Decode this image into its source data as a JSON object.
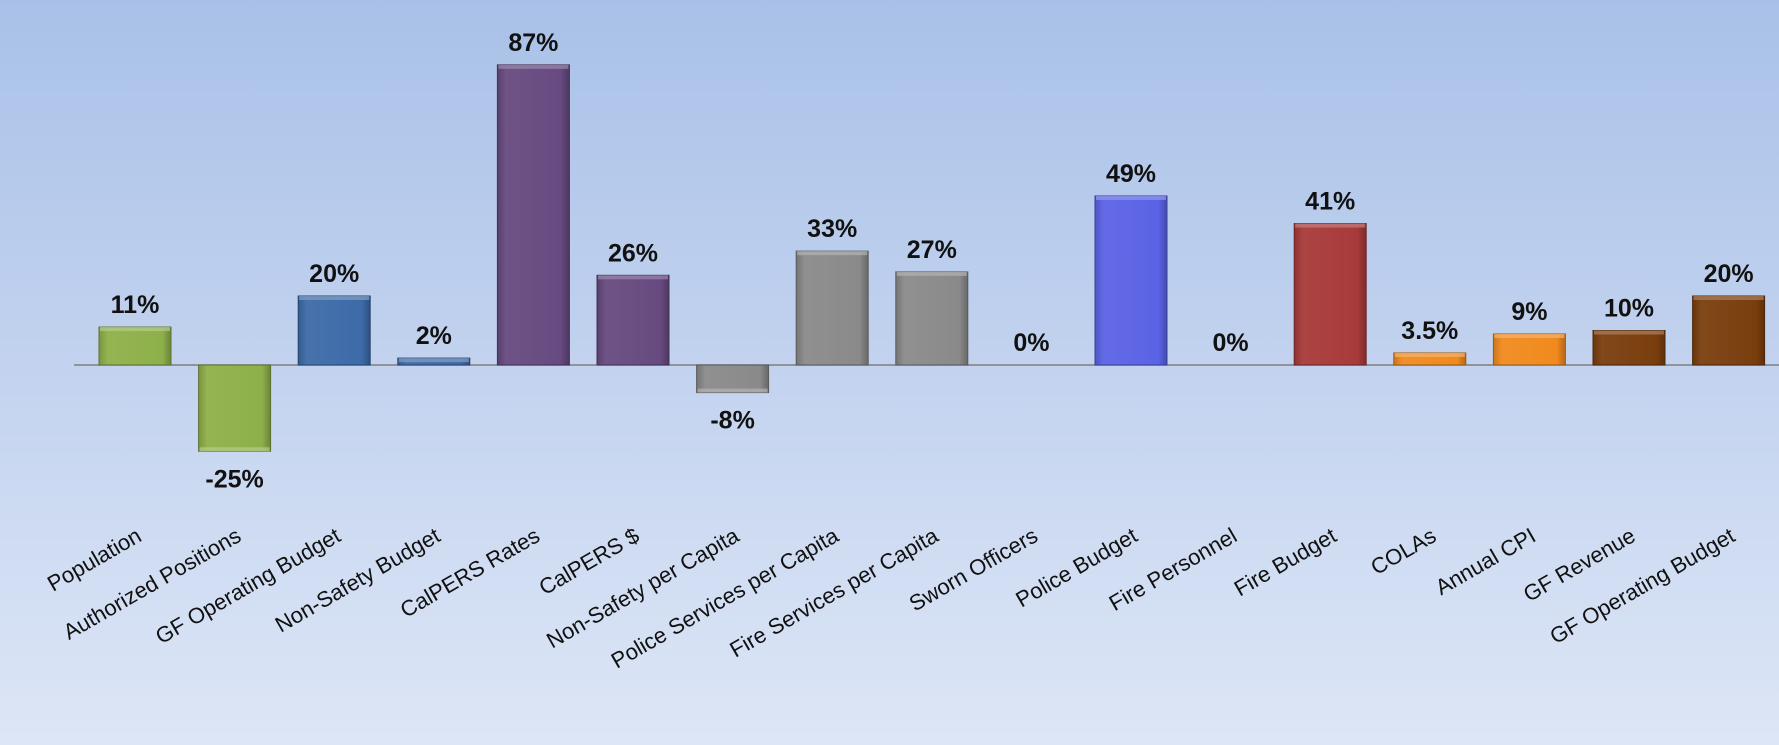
{
  "chart_data": {
    "type": "bar",
    "categories": [
      "Population",
      "Authorized Positions",
      "GF Operating Budget",
      "Non-Safety Budget",
      "CalPERS Rates",
      "CalPERS $",
      "Non-Safety per Capita",
      "Police Services per Capita",
      "Fire Services per Capita",
      "Sworn Officers",
      "Police Budget",
      "Fire Personnel",
      "Fire Budget",
      "COLAs",
      "Annual CPI",
      "GF Revenue",
      "GF Operating Budget"
    ],
    "values": [
      11,
      -25,
      20,
      2,
      87,
      26,
      -8,
      33,
      27,
      0,
      49,
      0,
      41,
      3.5,
      9,
      10,
      20
    ],
    "data_labels": [
      "11%",
      "-25%",
      "20%",
      "2%",
      "87%",
      "26%",
      "-8%",
      "33%",
      "27%",
      "0%",
      "49%",
      "0%",
      "41%",
      "3.5%",
      "9%",
      "10%",
      "20%"
    ],
    "colors": [
      "#8eb04a",
      "#8eb04a",
      "#3d6ba8",
      "#3d6ba8",
      "#674a80",
      "#674a80",
      "#8a8a8a",
      "#8a8a8a",
      "#8a8a8a",
      "#5b63e6",
      "#5b63e6",
      "#a83a3a",
      "#a83a3a",
      "#f08a1e",
      "#f08a1e",
      "#7a3e0e",
      "#7a3e0e"
    ],
    "title": "",
    "xlabel": "",
    "ylabel": "",
    "ylim": [
      -30,
      90
    ],
    "grid": false,
    "legend": "none",
    "baseline_color": "#7f7f7f"
  }
}
